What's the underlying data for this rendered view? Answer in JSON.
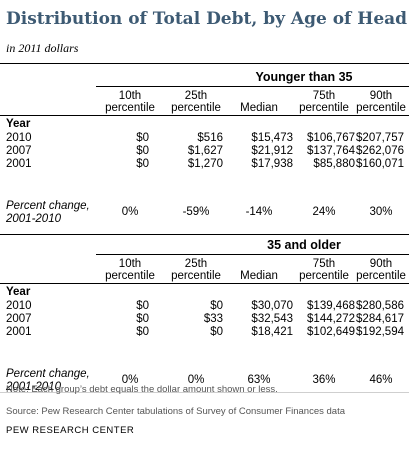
{
  "title": "Distribution of Total Debt, by Age of Head",
  "subtitle": "in 2011 dollars",
  "chart_data": {
    "type": "table",
    "column_headers": [
      [
        "10th",
        "percentile"
      ],
      [
        "25th",
        "percentile"
      ],
      [
        "",
        "Median"
      ],
      [
        "75th",
        "percentile"
      ],
      [
        "90th",
        "percentile"
      ]
    ],
    "row_header": "Year",
    "change_label": [
      "Percent change,",
      "2001-2010"
    ],
    "groups": [
      {
        "name": "Younger than 35",
        "rows": [
          {
            "year": "2010",
            "values": [
              "$0",
              "$516",
              "$15,473",
              "$106,767",
              "$207,757"
            ]
          },
          {
            "year": "2007",
            "values": [
              "$0",
              "$1,627",
              "$21,912",
              "$137,764",
              "$262,076"
            ]
          },
          {
            "year": "2001",
            "values": [
              "$0",
              "$1,270",
              "$17,938",
              "$85,880",
              "$160,071"
            ]
          }
        ],
        "percent_change": [
          "0%",
          "-59%",
          "-14%",
          "24%",
          "30%"
        ]
      },
      {
        "name": "35 and older",
        "rows": [
          {
            "year": "2010",
            "values": [
              "$0",
              "$0",
              "$30,070",
              "$139,468",
              "$280,586"
            ]
          },
          {
            "year": "2007",
            "values": [
              "$0",
              "$33",
              "$32,543",
              "$144,272",
              "$284,617"
            ]
          },
          {
            "year": "2001",
            "values": [
              "$0",
              "$0",
              "$18,421",
              "$102,649",
              "$192,594"
            ]
          }
        ],
        "percent_change": [
          "0%",
          "0%",
          "63%",
          "36%",
          "46%"
        ]
      }
    ]
  },
  "note": "Note: Each group’s debt equals the dollar amount shown or less.",
  "source": "Source: Pew Research Center tabulations of Survey of Consumer Finances data",
  "credit": "PEW RESEARCH CENTER"
}
